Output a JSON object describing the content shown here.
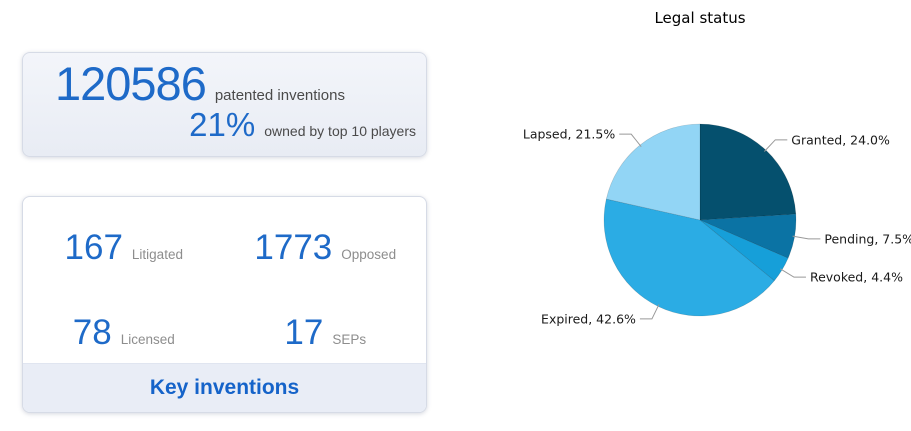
{
  "stats_card": {
    "patented_value": "120586",
    "patented_label": "patented inventions",
    "top_players_value": "21%",
    "top_players_label": "owned by top 10 players"
  },
  "key_inventions_card": {
    "items": [
      {
        "value": "167",
        "label": "Litigated"
      },
      {
        "value": "1773",
        "label": "Opposed"
      },
      {
        "value": "78",
        "label": "Licensed"
      },
      {
        "value": "17",
        "label": "SEPs"
      }
    ],
    "footer_label": "Key inventions"
  },
  "chart_data": {
    "type": "pie",
    "title": "Legal status",
    "slices": [
      {
        "label": "Granted",
        "value": 24.0,
        "color": "#05506E"
      },
      {
        "label": "Pending",
        "value": 7.5,
        "color": "#0B73A4"
      },
      {
        "label": "Revoked",
        "value": 4.4,
        "color": "#169FD9"
      },
      {
        "label": "Expired",
        "value": 42.6,
        "color": "#2BACE4"
      },
      {
        "label": "Lapsed",
        "value": 21.5,
        "color": "#92D5F5"
      }
    ],
    "start_angle_deg": 0,
    "direction": "clockwise",
    "label_format": "{label}, {value}%",
    "leader_line_color": "#999999",
    "label_color": "#1a1a1a",
    "legend_position": "none"
  },
  "colors": {
    "accent_blue": "#1E6AC8",
    "footer_blue": "#1563C9",
    "label_gray": "#8D8D8D",
    "dark_label": "#4A4A4A",
    "card_border": "#D6DBE6",
    "footer_bg": "#E9EDF6",
    "card_top_bg_from": "#F3F5FA",
    "card_top_bg_to": "#E8ECF4"
  }
}
